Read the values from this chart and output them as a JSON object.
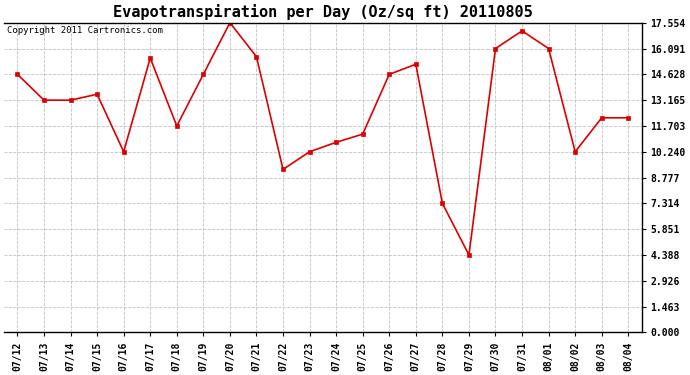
{
  "title": "Evapotranspiration per Day (Oz/sq ft) 20110805",
  "copyright_text": "Copyright 2011 Cartronics.com",
  "dates": [
    "07/12",
    "07/13",
    "07/14",
    "07/15",
    "07/16",
    "07/17",
    "07/18",
    "07/19",
    "07/20",
    "07/21",
    "07/22",
    "07/23",
    "07/24",
    "07/25",
    "07/26",
    "07/27",
    "07/28",
    "07/29",
    "07/30",
    "07/31",
    "08/01",
    "08/02",
    "08/03",
    "08/04"
  ],
  "values": [
    14.628,
    13.165,
    13.165,
    13.5,
    10.24,
    15.554,
    11.703,
    14.628,
    17.554,
    15.628,
    9.24,
    10.24,
    10.777,
    11.24,
    14.628,
    15.2,
    7.314,
    4.388,
    16.091,
    17.091,
    16.091,
    10.24,
    12.165,
    12.165
  ],
  "line_color": "#dd0000",
  "marker": "s",
  "marker_size": 2.5,
  "bg_color": "#ffffff",
  "grid_color": "#bbbbbb",
  "yticks": [
    0.0,
    1.463,
    2.926,
    4.388,
    5.851,
    7.314,
    8.777,
    10.24,
    11.703,
    13.165,
    14.628,
    16.091,
    17.554
  ],
  "ylim_max": 17.554,
  "title_fontsize": 11,
  "tick_fontsize": 7,
  "copyright_fontsize": 6.5
}
